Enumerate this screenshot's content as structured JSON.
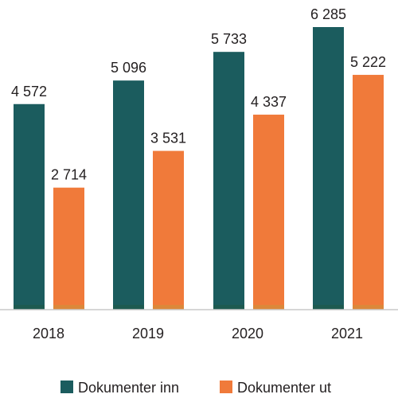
{
  "chart_data": {
    "type": "bar",
    "categories": [
      "2018",
      "2019",
      "2020",
      "2021"
    ],
    "series": [
      {
        "name": "Dokumenter inn",
        "values": [
          4572,
          5096,
          5733,
          6285
        ],
        "labels": [
          "4 572",
          "5 096",
          "5 733",
          "6 285"
        ],
        "color": "#1b5c5e"
      },
      {
        "name": "Dokumenter ut",
        "values": [
          2714,
          3531,
          4337,
          5222
        ],
        "labels": [
          "2 714",
          "3 531",
          "4 337",
          "5 222"
        ],
        "color": "#f07a3a"
      }
    ],
    "ylim": [
      0,
      6500
    ],
    "grid": false,
    "legend_position": "bottom"
  }
}
